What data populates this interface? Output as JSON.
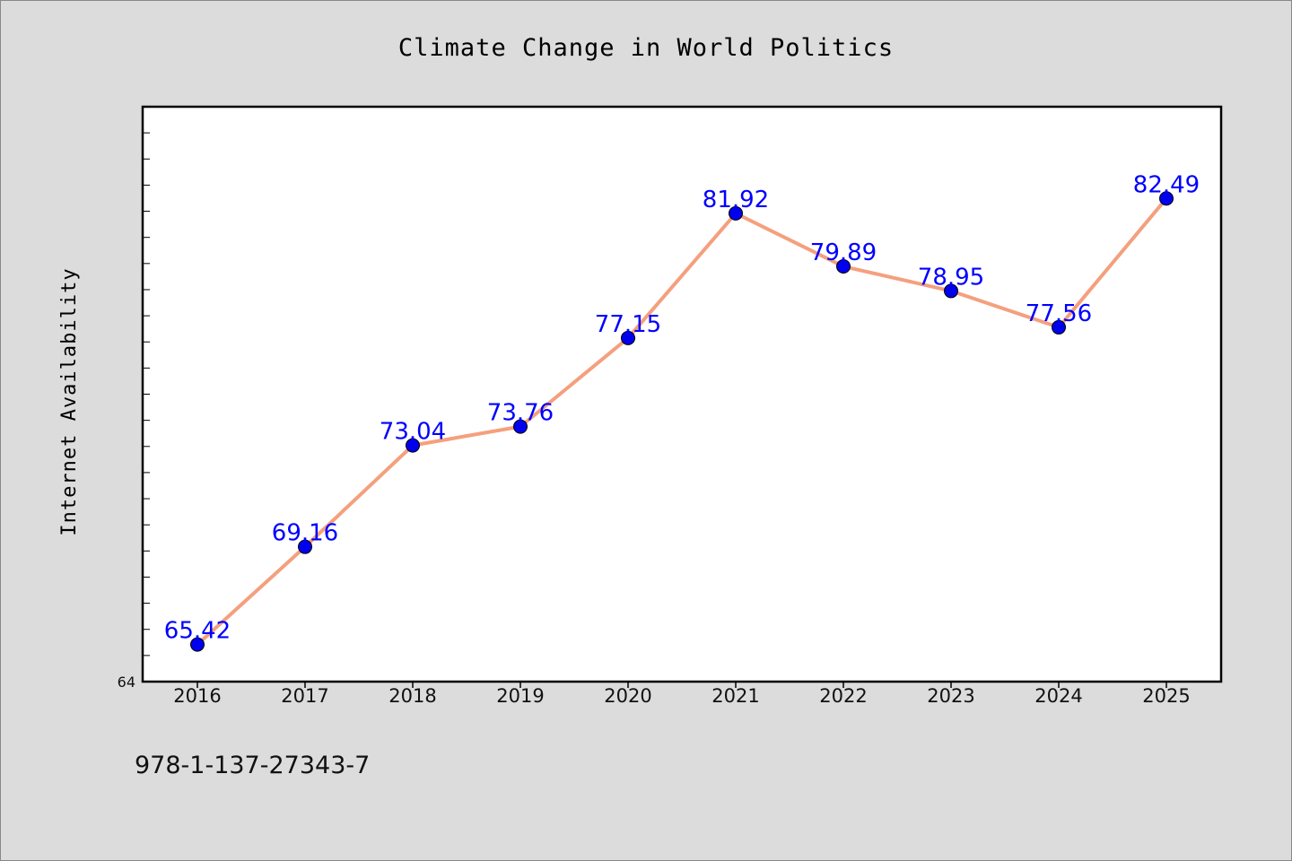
{
  "chart_data": {
    "type": "line",
    "title": "Climate Change in World Politics",
    "xlabel": "",
    "ylabel": "Internet Availability",
    "categories": [
      "2016",
      "2017",
      "2018",
      "2019",
      "2020",
      "2021",
      "2022",
      "2023",
      "2024",
      "2025"
    ],
    "series": [
      {
        "values": [
          65.42,
          69.16,
          73.04,
          73.76,
          77.15,
          81.92,
          79.89,
          78.95,
          77.56,
          82.49
        ],
        "data_labels": [
          "65.42",
          "69.16",
          "73.04",
          "73.76",
          "77.15",
          "81.92",
          "79.89",
          "78.95",
          "77.56",
          "82.49"
        ],
        "line_color": "#f4a07e",
        "marker_color": "#0000ee"
      }
    ],
    "ylim": [
      64,
      86
    ],
    "ytick_labels": [
      "64"
    ],
    "label_color": "#0000ff",
    "grid": false,
    "footer": "978-1-137-27343-7"
  },
  "colors": {
    "background": "#dcdcdc",
    "plot_background": "#ffffff"
  }
}
